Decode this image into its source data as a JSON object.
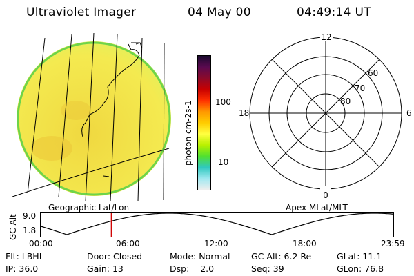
{
  "header": {
    "instrument": "Ultraviolet Imager",
    "date": "04 May 00",
    "time": "04:49:14 UT"
  },
  "colorbar": {
    "unit_label": "photon cm-2s-1",
    "ticks": [
      "100",
      "10"
    ],
    "colors": [
      "#1a0a2e",
      "#5a0a50",
      "#8c0a2a",
      "#c80000",
      "#ff3000",
      "#ff9800",
      "#ffcc00",
      "#ffff40",
      "#b8f000",
      "#50e030",
      "#30c8c0",
      "#a0e8f0",
      "#eeeeee"
    ]
  },
  "map": {
    "label": "Geographic Lat/Lon",
    "disk_color": "#f4e84a",
    "limb_color": "#6ed44a"
  },
  "polar": {
    "label": "Apex MLat/MLT",
    "mlt_labels": {
      "top": "12",
      "left": "18",
      "right": "6",
      "bottom": "0"
    },
    "mlat_labels": [
      "60",
      "70",
      "80"
    ]
  },
  "gc_alt_plot": {
    "y_axis_label": "GC Alt",
    "y_ticks": [
      "9.0",
      "1.8"
    ],
    "x_ticks": [
      "00:00",
      "06:00",
      "12:00",
      "18:00",
      "23:59"
    ],
    "current_time_hours": 4.82,
    "marker_color": "#d00000"
  },
  "status": {
    "row1": [
      {
        "label": "Flt:",
        "value": "LBHL"
      },
      {
        "label": "Door:",
        "value": "Closed"
      },
      {
        "label": "Mode:",
        "value": "Normal"
      },
      {
        "label": "GC Alt:",
        "value": "6.2 Re"
      },
      {
        "label": "GLat:",
        "value": "11.1"
      }
    ],
    "row2": [
      {
        "label": "IP:",
        "value": "36.0"
      },
      {
        "label": "Gain:",
        "value": "13"
      },
      {
        "label": "Dsp:",
        "value": "2.0"
      },
      {
        "label": "Seq:",
        "value": "39"
      },
      {
        "label": "GLon:",
        "value": "76.8"
      }
    ]
  }
}
